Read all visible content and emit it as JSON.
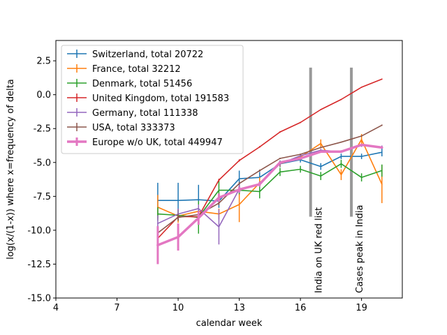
{
  "chart_data": {
    "type": "line",
    "title": "",
    "xlabel": "calendar week",
    "ylabel": "log(x/(1-x)) where x=frequency of delta",
    "xlim": [
      4,
      21
    ],
    "ylim": [
      -15,
      4
    ],
    "xticks": [
      4,
      7,
      10,
      13,
      16,
      19
    ],
    "yticks": [
      -15.0,
      -12.5,
      -10.0,
      -7.5,
      -5.0,
      -2.5,
      0.0,
      2.5
    ],
    "grid": false,
    "legend_position": "top-left",
    "series": [
      {
        "name": "Switzerland, total 20722",
        "color": "#1f77b4",
        "width": 1.6,
        "x": [
          9,
          10,
          11,
          12,
          13,
          14,
          15,
          16,
          17,
          18,
          19,
          20
        ],
        "y": [
          -7.8,
          -7.8,
          -7.75,
          -7.85,
          -6.2,
          -6.1,
          -5.1,
          -4.8,
          -5.3,
          -4.55,
          -4.55,
          -4.25
        ],
        "err": [
          1.3,
          1.3,
          1.1,
          0.5,
          0.6,
          0.4,
          0.25,
          0.2,
          0.25,
          0.2,
          0.2,
          0.3
        ]
      },
      {
        "name": "France, total 32212",
        "color": "#ff7f0e",
        "width": 1.6,
        "x": [
          9,
          10,
          11,
          12,
          13,
          14,
          15,
          16,
          17,
          18,
          19,
          20
        ],
        "y": [
          -8.3,
          -8.95,
          -8.6,
          -8.8,
          -8.1,
          -6.5,
          -5.1,
          -4.6,
          -3.6,
          -5.9,
          -3.3,
          -6.6
        ],
        "err": [
          0.9,
          0.5,
          0.5,
          0.4,
          1.3,
          0.4,
          0.2,
          0.2,
          0.3,
          0.4,
          0.4,
          1.4
        ]
      },
      {
        "name": "Denmark, total 51456",
        "color": "#2ca02c",
        "width": 1.6,
        "x": [
          9,
          10,
          11,
          12,
          13,
          14,
          15,
          16,
          17,
          18,
          19,
          20
        ],
        "y": [
          -8.8,
          -8.9,
          -9.05,
          -7.05,
          -7.05,
          -7.15,
          -5.7,
          -5.5,
          -6.0,
          -5.1,
          -6.1,
          -5.6
        ],
        "err": [
          0.5,
          0.4,
          1.2,
          0.8,
          0.3,
          0.5,
          0.3,
          0.25,
          0.3,
          0.3,
          0.3,
          0.45
        ]
      },
      {
        "name": "United Kingdom, total 191583",
        "color": "#d62728",
        "width": 1.6,
        "x": [
          9,
          10,
          11,
          12,
          13,
          14,
          15,
          16,
          17,
          18,
          19,
          20
        ],
        "y": [
          -10.6,
          -9.0,
          -9.0,
          -6.3,
          -4.85,
          -3.85,
          -2.75,
          -2.05,
          -1.1,
          -0.35,
          0.55,
          1.15
        ],
        "err": [
          0.15,
          0.1,
          0.1,
          0.1,
          0.08,
          0.06,
          0.05,
          0.04,
          0.03,
          0.03,
          0.03,
          0.03
        ]
      },
      {
        "name": "Germany, total 111338",
        "color": "#9467bd",
        "width": 1.6,
        "x": [
          9,
          10,
          11,
          12,
          13,
          14,
          15,
          16,
          17,
          18,
          19,
          20
        ],
        "y": [
          -9.5,
          -8.8,
          -8.4,
          -9.75,
          -6.95,
          -6.6,
          -5.1,
          -4.5,
          -4.1,
          -4.2,
          -3.75,
          -3.85
        ],
        "err": [
          0.6,
          0.4,
          0.3,
          1.3,
          0.3,
          0.2,
          0.15,
          0.1,
          0.1,
          0.1,
          0.1,
          0.1
        ]
      },
      {
        "name": "USA, total 333373",
        "color": "#8c564b",
        "width": 1.6,
        "x": [
          9,
          10,
          11,
          12,
          13,
          14,
          15,
          16,
          17,
          18,
          19,
          20
        ],
        "y": [
          -10.2,
          -9.05,
          -8.85,
          -8.0,
          -6.55,
          -5.6,
          -4.7,
          -4.4,
          -3.9,
          -3.5,
          -3.05,
          -2.25
        ],
        "err": [
          0.3,
          0.25,
          0.2,
          0.15,
          0.1,
          0.08,
          0.05,
          0.05,
          0.05,
          0.04,
          0.04,
          0.05
        ]
      },
      {
        "name": "Europe w/o UK, total 449947",
        "color": "#e377c2",
        "width": 3.5,
        "x": [
          9,
          10,
          11,
          12,
          13,
          14,
          15,
          16,
          17,
          18,
          19,
          20
        ],
        "y": [
          -11.1,
          -10.5,
          -9.1,
          -7.6,
          -7.0,
          -6.6,
          -5.0,
          -4.7,
          -4.2,
          -4.2,
          -3.7,
          -3.9
        ],
        "err": [
          1.4,
          1.0,
          0.5,
          0.3,
          0.2,
          0.15,
          0.1,
          0.08,
          0.07,
          0.06,
          0.06,
          0.07
        ]
      }
    ],
    "annotations": [
      {
        "x": 16.5,
        "y_from": -9.0,
        "y_to": 2.0,
        "color": "#999999",
        "text": "India on UK red list"
      },
      {
        "x": 18.5,
        "y_from": -9.0,
        "y_to": 2.0,
        "color": "#999999",
        "text": "Cases peak in India"
      }
    ]
  }
}
